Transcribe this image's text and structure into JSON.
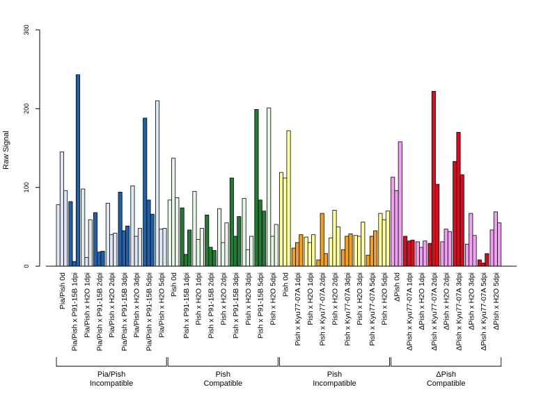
{
  "chart_data": {
    "type": "bar",
    "ylabel": "Raw Signal",
    "ylim": [
      0,
      300
    ],
    "yticks": [
      0,
      100,
      200,
      300
    ],
    "grid": false,
    "colors": {
      "pia_light": "#dde6f2",
      "pia_dark": "#2060a8",
      "pishc_light": "#e6f5e6",
      "pishc_dark": "#247a35",
      "pishi_light": "#ffffa0",
      "pishi_dark": "#f0a020",
      "dpish_light": "#f0a0f0",
      "dpish_dark": "#d0101e"
    },
    "categories": [
      {
        "label": "Pia/Pish 0d",
        "values": [
          78,
          145,
          96
        ],
        "shade": "pia_light"
      },
      {
        "label": "Pia/Pish x P91-15B 1dpi",
        "values": [
          82,
          6,
          243
        ],
        "shade": "pia_dark"
      },
      {
        "label": "Pia/Pish x H2O 1dpi",
        "values": [
          98,
          11,
          59
        ],
        "shade": "pia_light"
      },
      {
        "label": "Pia/Pish x P91-15B 2dpi",
        "values": [
          68,
          18,
          19
        ],
        "shade": "pia_dark"
      },
      {
        "label": "Pia/Pish x H2O 2dpi",
        "values": [
          80,
          40,
          42
        ],
        "shade": "pia_light"
      },
      {
        "label": "Pia/Pish x P91-15B 3dpi",
        "values": [
          94,
          45,
          51
        ],
        "shade": "pia_dark"
      },
      {
        "label": "Pia/Pish x H2O 3dpi",
        "values": [
          102,
          38,
          48
        ],
        "shade": "pia_light"
      },
      {
        "label": "Pia/Pish x P91-15B 5dpi",
        "values": [
          188,
          84,
          66
        ],
        "shade": "pia_dark"
      },
      {
        "label": "Pia/Pish x H2O 5dpi",
        "values": [
          210,
          47,
          48
        ],
        "shade": "pia_light"
      },
      {
        "label": "Pish 0d",
        "values": [
          84,
          137,
          87
        ],
        "shade": "pishc_light"
      },
      {
        "label": "Pish x P91-15B 1dpi",
        "values": [
          74,
          15,
          46
        ],
        "shade": "pishc_dark"
      },
      {
        "label": "Pish x H2O 1dpi",
        "values": [
          95,
          34,
          48
        ],
        "shade": "pishc_light"
      },
      {
        "label": "Pish x P91-15B 2dpi",
        "values": [
          65,
          24,
          20
        ],
        "shade": "pishc_dark"
      },
      {
        "label": "Pish x H2O 2dpi",
        "values": [
          73,
          30,
          55
        ],
        "shade": "pishc_light"
      },
      {
        "label": "Pish x P91-15B 3dpi",
        "values": [
          112,
          38,
          63
        ],
        "shade": "pishc_dark"
      },
      {
        "label": "Pish x H2O 3dpi",
        "values": [
          86,
          21,
          38
        ],
        "shade": "pishc_light"
      },
      {
        "label": "Pish x P91-15B 5dpi",
        "values": [
          199,
          84,
          70
        ],
        "shade": "pishc_dark"
      },
      {
        "label": "Pish x H2O 5dpi",
        "values": [
          201,
          38,
          53
        ],
        "shade": "pishc_light"
      },
      {
        "label": "Pish 0d",
        "values": [
          119,
          112,
          172
        ],
        "shade": "pishi_light"
      },
      {
        "label": "Pish x Kyu77-07A 1dpi",
        "values": [
          23,
          30,
          40
        ],
        "shade": "pishi_dark"
      },
      {
        "label": "Pish x H2O 1dpi",
        "values": [
          37,
          30,
          40
        ],
        "shade": "pishi_light"
      },
      {
        "label": "Pish x Kyu77-07A 2dpi",
        "values": [
          8,
          67,
          16
        ],
        "shade": "pishi_dark"
      },
      {
        "label": "Pish x H2O 2dpi",
        "values": [
          36,
          71,
          50
        ],
        "shade": "pishi_light"
      },
      {
        "label": "Pish x Kyu77-07A 3dpi",
        "values": [
          21,
          38,
          41
        ],
        "shade": "pishi_dark"
      },
      {
        "label": "Pish x H2O 3dpi",
        "values": [
          39,
          38,
          56
        ],
        "shade": "pishi_light"
      },
      {
        "label": "Pish x Kyu77-07A 5dpi",
        "values": [
          14,
          38,
          45
        ],
        "shade": "pishi_dark"
      },
      {
        "label": "Pish x H2O 5dpi",
        "values": [
          67,
          59,
          70
        ],
        "shade": "pishi_light"
      },
      {
        "label": "ΔPish 0d",
        "values": [
          113,
          96,
          158
        ],
        "shade": "dpish_light"
      },
      {
        "label": "ΔPish x Kyu77-07A 1dpi",
        "values": [
          38,
          32,
          33
        ],
        "shade": "dpish_dark"
      },
      {
        "label": "ΔPish x H2O 1dpi",
        "values": [
          31,
          24,
          32
        ],
        "shade": "dpish_light"
      },
      {
        "label": "ΔPish x Kyu77-07A 2dpi",
        "values": [
          29,
          222,
          104
        ],
        "shade": "dpish_dark"
      },
      {
        "label": "ΔPish x H2O 2dpi",
        "values": [
          31,
          47,
          44
        ],
        "shade": "dpish_light"
      },
      {
        "label": "ΔPish x Kyu77-07A 3dpi",
        "values": [
          133,
          170,
          116
        ],
        "shade": "dpish_dark"
      },
      {
        "label": "ΔPish x H2O 3dpi",
        "values": [
          28,
          67,
          39
        ],
        "shade": "dpish_light"
      },
      {
        "label": "ΔPish x Kyu77-07A 5dpi",
        "values": [
          8,
          4,
          16
        ],
        "shade": "dpish_dark"
      },
      {
        "label": "ΔPish x H2O 5dpi",
        "values": [
          46,
          69,
          55
        ],
        "shade": "dpish_light"
      }
    ],
    "groups": [
      {
        "line1": "Pia/Pish",
        "line2": "Incompatible",
        "first": 0,
        "last": 8
      },
      {
        "line1": "Pish",
        "line2": "Compatible",
        "first": 9,
        "last": 17
      },
      {
        "line1": "Pish",
        "line2": "Incompatible",
        "first": 18,
        "last": 26
      },
      {
        "line1": "ΔPish",
        "line2": "Compatible",
        "first": 27,
        "last": 35
      }
    ]
  }
}
